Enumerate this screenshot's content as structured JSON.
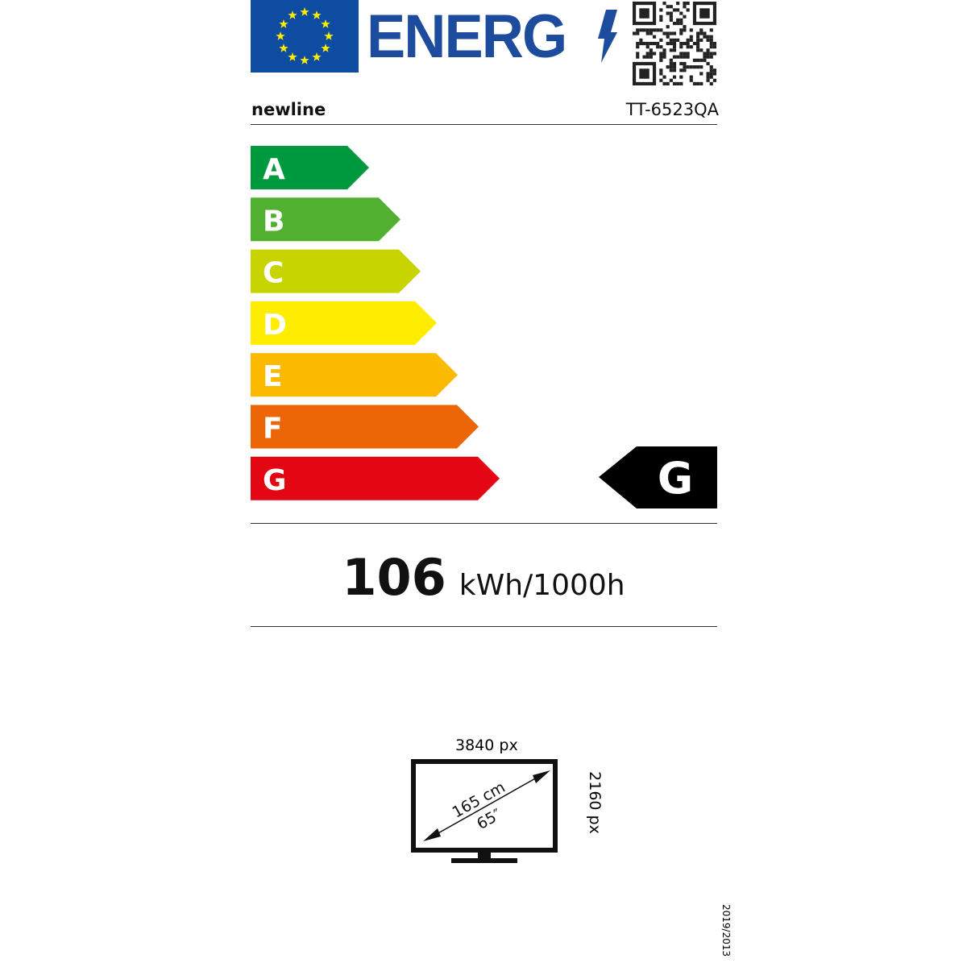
{
  "header": {
    "logo_text": "ENERG",
    "supplier": "newline",
    "model": "TT-6523QA"
  },
  "scale": {
    "classes": [
      {
        "label": "A",
        "color": "#009a3e"
      },
      {
        "label": "B",
        "color": "#52b030"
      },
      {
        "label": "C",
        "color": "#c8d400"
      },
      {
        "label": "D",
        "color": "#ffed00"
      },
      {
        "label": "E",
        "color": "#fbb900"
      },
      {
        "label": "F",
        "color": "#ec6608"
      },
      {
        "label": "G",
        "color": "#e30613"
      }
    ],
    "rated_class": "G"
  },
  "consumption": {
    "value": "106",
    "unit": "kWh/1000h"
  },
  "screen": {
    "width_px": "3840 px",
    "height_px": "2160 px",
    "diagonal_cm": "165 cm",
    "diagonal_in": "65″"
  },
  "regulation": "2019/2013"
}
